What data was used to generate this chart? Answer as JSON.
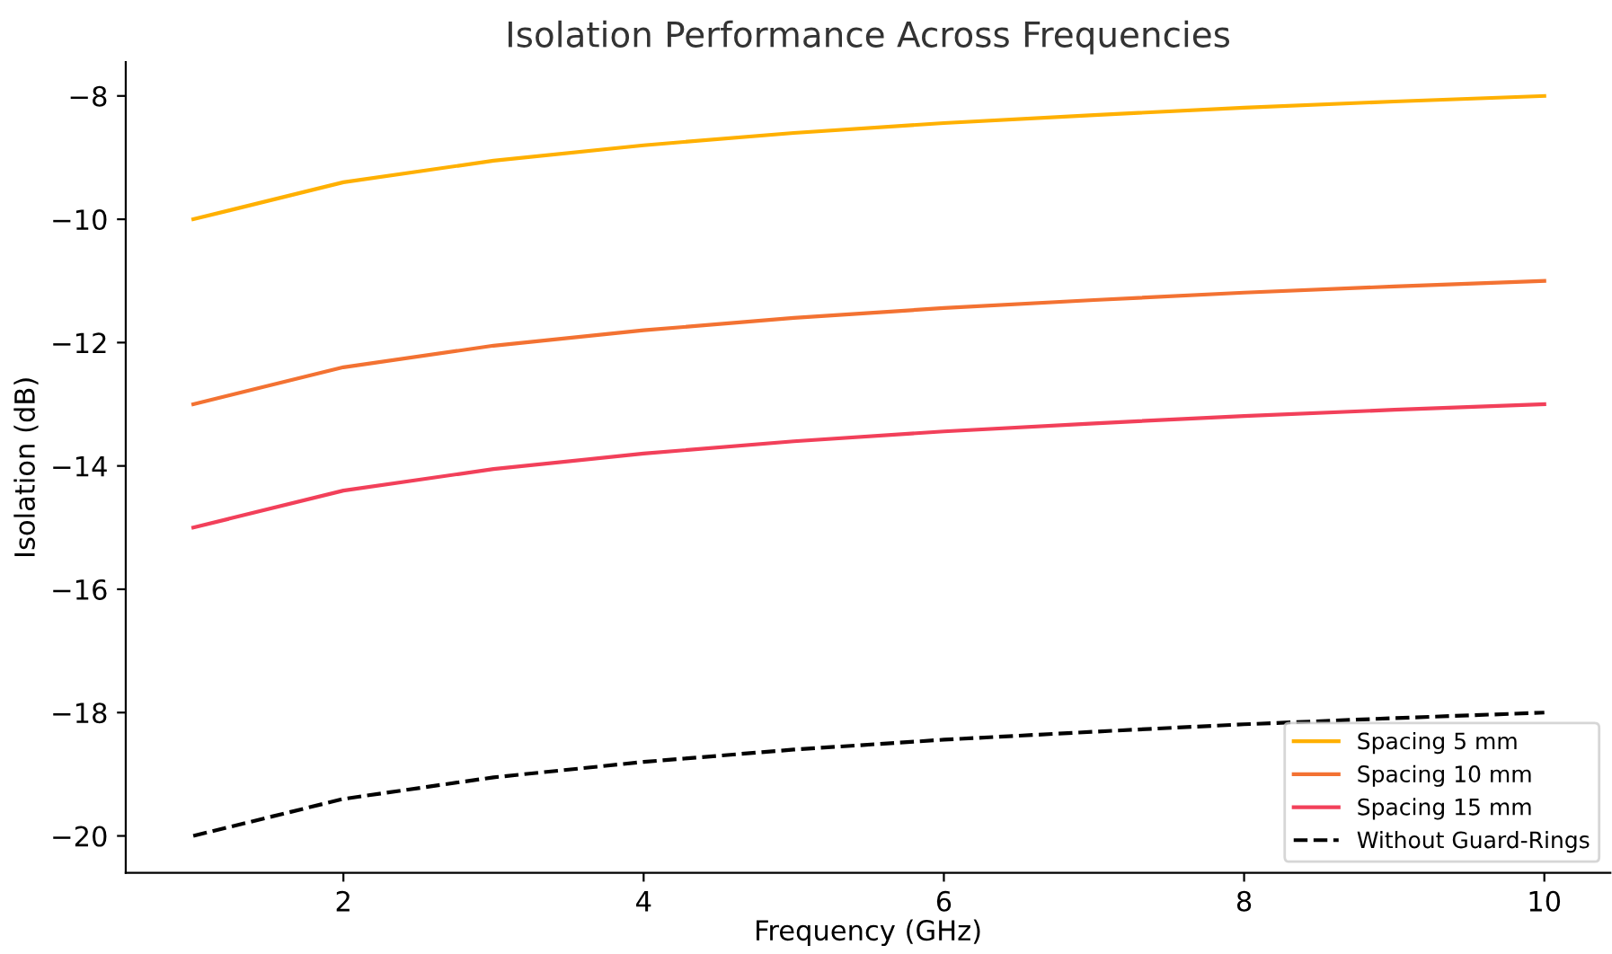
{
  "chart_data": {
    "type": "line",
    "title": "Isolation Performance Across Frequencies",
    "xlabel": "Frequency (GHz)",
    "ylabel": "Isolation (dB)",
    "x": [
      1,
      2,
      3,
      4,
      5,
      6,
      7,
      8,
      9,
      10
    ],
    "series": [
      {
        "name": "Spacing 5 mm",
        "color": "#ffb000",
        "values": [
          -10,
          -9.4,
          -9.05,
          -8.8,
          -8.6,
          -8.44,
          -8.31,
          -8.19,
          -8.09,
          -8
        ]
      },
      {
        "name": "Spacing 10 mm",
        "color": "#f37232",
        "values": [
          -13,
          -12.4,
          -12.05,
          -11.8,
          -11.6,
          -11.44,
          -11.31,
          -11.19,
          -11.09,
          -11
        ]
      },
      {
        "name": "Spacing 15 mm",
        "color": "#f2405a",
        "values": [
          -15,
          -14.4,
          -14.05,
          -13.8,
          -13.6,
          -13.44,
          -13.31,
          -13.19,
          -13.09,
          -13
        ]
      },
      {
        "name": "Without Guard-Rings",
        "color": "#000000",
        "line_style": "dashed",
        "values": [
          -20,
          -19.4,
          -19.05,
          -18.8,
          -18.6,
          -18.44,
          -18.31,
          -18.19,
          -18.09,
          -18
        ]
      }
    ],
    "xlim": [
      0.55,
      10.44
    ],
    "ylim": [
      -20.6,
      -7.45
    ],
    "xticks": [
      2,
      4,
      6,
      8,
      10
    ],
    "yticks": [
      -20,
      -18,
      -16,
      -14,
      -12,
      -10,
      -8
    ],
    "legend": "bottom right",
    "grid": false
  }
}
